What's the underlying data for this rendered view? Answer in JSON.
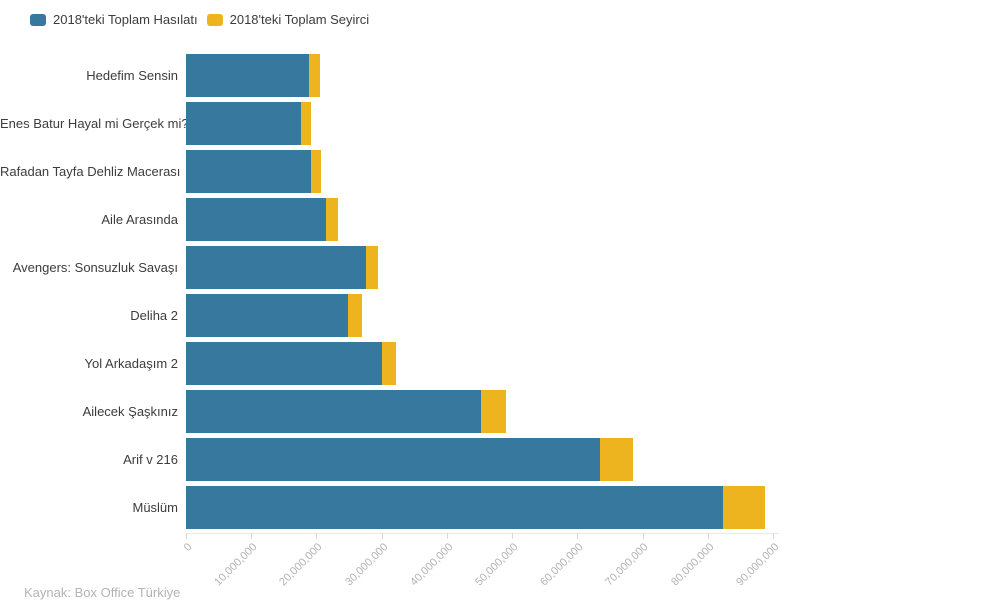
{
  "page": {
    "background": "#ffffff"
  },
  "legend": {
    "items": [
      {
        "label": "2018'teki Toplam Hasılatı",
        "color": "#36789e"
      },
      {
        "label": "2018'teki Toplam Seyirci",
        "color": "#eeb41f"
      }
    ]
  },
  "footer": {
    "source": "Kaynak: Box Office Türkiye"
  },
  "chart_data": {
    "type": "bar",
    "orientation": "horizontal",
    "stacked": true,
    "grid": false,
    "legend_position": "top-left",
    "categories": [
      "Hedefim Sensin",
      "Enes Batur Hayal mi Gerçek mi?",
      "Rafadan Tayfa Dehliz Macerası",
      "Aile Arasında",
      "Avengers: Sonsuzluk Savaşı",
      "Deliha 2",
      "Yol Arkadaşım 2",
      "Ailecek Şaşkınız",
      "Arif v 216",
      "Müslüm"
    ],
    "series": [
      {
        "name": "2018'teki Toplam Hasılatı",
        "color": "#36789e",
        "values": [
          18900000,
          17600000,
          19200000,
          21500000,
          27600000,
          24900000,
          30000000,
          45300000,
          63500000,
          82300000
        ]
      },
      {
        "name": "2018'teki Toplam Seyirci",
        "color": "#eeb41f",
        "values": [
          1600000,
          1500000,
          1550000,
          1850000,
          1850000,
          2100000,
          2250000,
          3700000,
          5100000,
          6500000
        ]
      }
    ],
    "x_axis": {
      "min": 0,
      "max": 90000000,
      "tick_interval": 10000000,
      "label_rotation": -45,
      "tick_labels": [
        "0",
        "10,000,000",
        "20,000,000",
        "30,000,000",
        "40,000,000",
        "50,000,000",
        "60,000,000",
        "70,000,000",
        "80,000,000",
        "90,000,000"
      ]
    },
    "source": "Kaynak: Box Office Türkiye"
  }
}
